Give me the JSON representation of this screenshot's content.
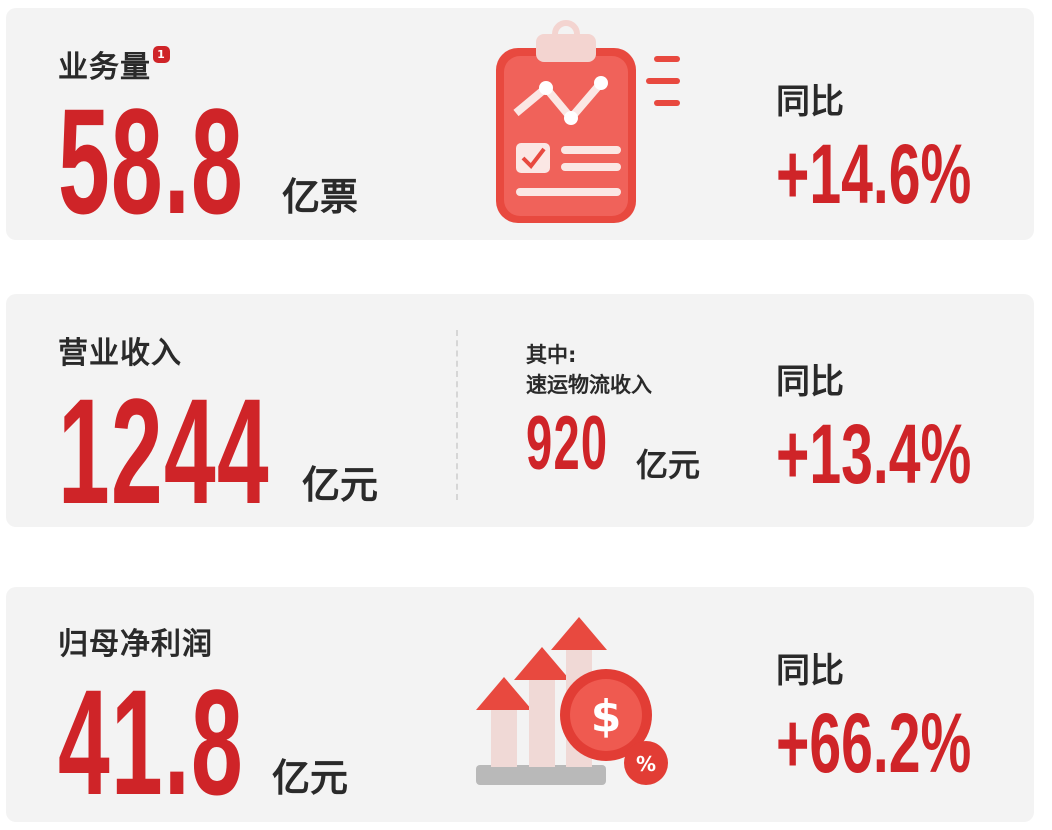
{
  "colors": {
    "accent": "#cf2428",
    "card_bg": "#f3f3f3",
    "text": "#2a2a2a"
  },
  "volume": {
    "label": "业务量",
    "footnote": "1",
    "value": "58.8",
    "unit": "亿票",
    "yoy_label": "同比",
    "yoy": "+14.6%",
    "icon": "clipboard-chart-icon"
  },
  "revenue": {
    "label": "营业收入",
    "value": "1244",
    "unit": "亿元",
    "sub_label_1": "其中:",
    "sub_label_2": "速运物流收入",
    "sub_value": "920",
    "sub_unit": "亿元",
    "yoy_label": "同比",
    "yoy": "+13.4%"
  },
  "profit": {
    "label": "归母净利润",
    "value": "41.8",
    "unit": "亿元",
    "yoy_label": "同比",
    "yoy": "+66.2%",
    "icon": "growth-arrows-coin-icon"
  }
}
